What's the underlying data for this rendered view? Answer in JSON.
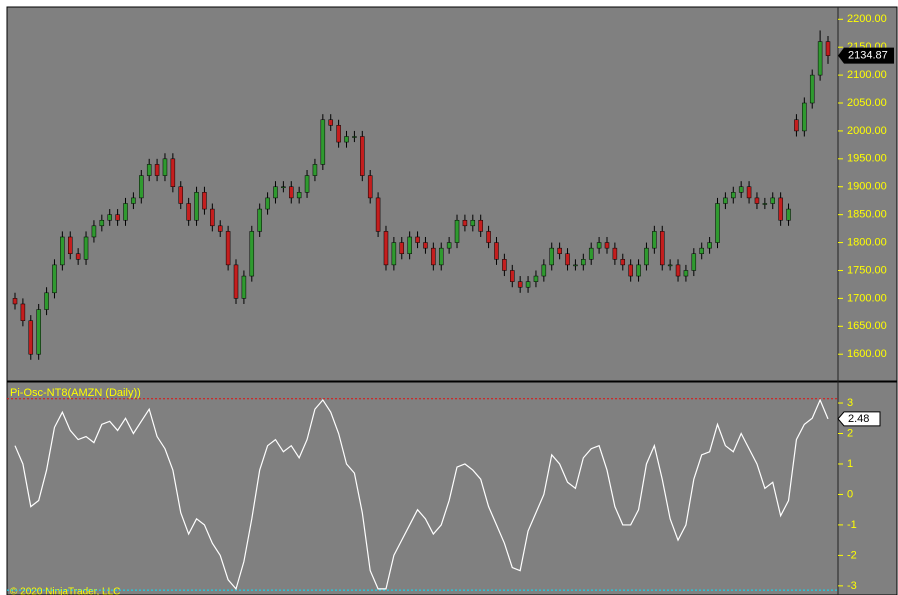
{
  "chart_data": [
    {
      "type": "candlestick",
      "up_color": "#2f9a2f",
      "down_color": "#c41e1e",
      "wick_color": "#000000",
      "ylim": [
        1552,
        2222
      ],
      "yticks": [
        {
          "value": 1600,
          "label": "1600.00"
        },
        {
          "value": 1650,
          "label": "1650.00"
        },
        {
          "value": 1700,
          "label": "1700.00"
        },
        {
          "value": 1750,
          "label": "1750.00"
        },
        {
          "value": 1800,
          "label": "1800.00"
        },
        {
          "value": 1850,
          "label": "1850.00"
        },
        {
          "value": 1900,
          "label": "1900.00"
        },
        {
          "value": 1950,
          "label": "1950.00"
        },
        {
          "value": 2000,
          "label": "2000.00"
        },
        {
          "value": 2050,
          "label": "2050.00"
        },
        {
          "value": 2100,
          "label": "2100.00"
        },
        {
          "value": 2150,
          "label": "2150.00"
        },
        {
          "value": 2200,
          "label": "2200.00"
        }
      ],
      "open": [
        1700,
        1690,
        1660,
        1600,
        1680,
        1710,
        1760,
        1810,
        1780,
        1770,
        1810,
        1830,
        1840,
        1850,
        1840,
        1870,
        1880,
        1920,
        1940,
        1920,
        1950,
        1900,
        1870,
        1840,
        1890,
        1860,
        1830,
        1820,
        1760,
        1700,
        1740,
        1820,
        1860,
        1880,
        1900,
        1900,
        1880,
        1890,
        1920,
        1940,
        2020,
        2010,
        1980,
        1990,
        1990,
        1920,
        1880,
        1820,
        1760,
        1800,
        1780,
        1810,
        1800,
        1790,
        1760,
        1790,
        1800,
        1840,
        1830,
        1840,
        1820,
        1800,
        1770,
        1750,
        1730,
        1720,
        1730,
        1740,
        1760,
        1790,
        1780,
        1760,
        1760,
        1770,
        1790,
        1800,
        1790,
        1770,
        1760,
        1740,
        1760,
        1790,
        1820,
        1760,
        1760,
        1740,
        1750,
        1780,
        1790,
        1800,
        1870,
        1880,
        1890,
        1900,
        1880,
        1870,
        1870,
        1880,
        1840,
        2020,
        2000,
        2050,
        2100,
        2160
      ],
      "high": [
        1710,
        1700,
        1670,
        1690,
        1720,
        1770,
        1820,
        1820,
        1790,
        1820,
        1840,
        1850,
        1860,
        1860,
        1880,
        1890,
        1930,
        1950,
        1950,
        1960,
        1960,
        1910,
        1880,
        1900,
        1900,
        1870,
        1840,
        1830,
        1770,
        1750,
        1830,
        1870,
        1890,
        1910,
        1910,
        1910,
        1900,
        1930,
        1950,
        2030,
        2030,
        2020,
        2000,
        2000,
        2000,
        1930,
        1890,
        1830,
        1810,
        1810,
        1820,
        1820,
        1810,
        1800,
        1800,
        1810,
        1850,
        1850,
        1850,
        1850,
        1830,
        1810,
        1780,
        1760,
        1740,
        1740,
        1750,
        1770,
        1800,
        1800,
        1790,
        1770,
        1780,
        1800,
        1810,
        1810,
        1800,
        1780,
        1770,
        1770,
        1800,
        1830,
        1830,
        1770,
        1770,
        1760,
        1790,
        1800,
        1810,
        1880,
        1890,
        1900,
        1910,
        1910,
        1890,
        1880,
        1890,
        1890,
        1870,
        2030,
        2060,
        2110,
        2180,
        2170
      ],
      "low": [
        1680,
        1650,
        1590,
        1590,
        1670,
        1700,
        1750,
        1770,
        1760,
        1760,
        1800,
        1820,
        1830,
        1830,
        1830,
        1860,
        1870,
        1910,
        1910,
        1910,
        1890,
        1860,
        1830,
        1830,
        1850,
        1820,
        1810,
        1750,
        1690,
        1690,
        1730,
        1810,
        1850,
        1870,
        1890,
        1870,
        1870,
        1880,
        1910,
        1930,
        2000,
        1970,
        1970,
        1980,
        1910,
        1870,
        1810,
        1750,
        1750,
        1770,
        1770,
        1790,
        1780,
        1750,
        1750,
        1780,
        1790,
        1820,
        1820,
        1810,
        1790,
        1760,
        1740,
        1720,
        1710,
        1710,
        1720,
        1730,
        1750,
        1770,
        1750,
        1750,
        1750,
        1760,
        1780,
        1780,
        1760,
        1750,
        1730,
        1730,
        1750,
        1780,
        1750,
        1750,
        1730,
        1730,
        1740,
        1770,
        1780,
        1790,
        1860,
        1870,
        1880,
        1870,
        1860,
        1860,
        1860,
        1830,
        1830,
        1990,
        1990,
        2040,
        2090,
        2120
      ],
      "close": [
        1690,
        1660,
        1600,
        1680,
        1710,
        1760,
        1810,
        1780,
        1770,
        1810,
        1830,
        1840,
        1850,
        1840,
        1870,
        1880,
        1920,
        1940,
        1920,
        1950,
        1900,
        1870,
        1840,
        1890,
        1860,
        1830,
        1820,
        1760,
        1700,
        1740,
        1820,
        1860,
        1880,
        1900,
        1900,
        1880,
        1890,
        1920,
        1940,
        2020,
        2010,
        1980,
        1990,
        1990,
        1920,
        1880,
        1820,
        1760,
        1800,
        1780,
        1810,
        1800,
        1790,
        1760,
        1790,
        1800,
        1840,
        1830,
        1840,
        1820,
        1800,
        1770,
        1750,
        1730,
        1720,
        1730,
        1740,
        1760,
        1790,
        1780,
        1760,
        1760,
        1770,
        1790,
        1800,
        1790,
        1770,
        1760,
        1740,
        1760,
        1790,
        1820,
        1760,
        1760,
        1740,
        1750,
        1780,
        1790,
        1800,
        1870,
        1880,
        1890,
        1900,
        1880,
        1870,
        1870,
        1880,
        1840,
        1860,
        2000,
        2050,
        2100,
        2160,
        2134.87
      ]
    },
    {
      "type": "line",
      "title": "Pi-Osc-NT8(AMZN (Daily))",
      "color": "#ffffff",
      "ylim": [
        -3.3,
        3.69
      ],
      "yticks": [
        -3,
        -2,
        -1,
        0,
        1,
        2,
        3
      ],
      "levels": [
        {
          "value": 3.14,
          "color": "#e01010"
        },
        {
          "value": -3.14,
          "color": "#00e5ff"
        }
      ],
      "values": [
        1.6,
        1.0,
        -0.4,
        -0.2,
        0.8,
        2.2,
        2.7,
        2.1,
        1.8,
        1.9,
        1.7,
        2.3,
        2.4,
        2.1,
        2.5,
        2.0,
        2.4,
        2.8,
        1.9,
        1.5,
        0.8,
        -0.6,
        -1.3,
        -0.8,
        -1.0,
        -1.6,
        -2.0,
        -2.8,
        -3.1,
        -2.2,
        -0.8,
        0.8,
        1.6,
        1.8,
        1.4,
        1.6,
        1.2,
        1.8,
        2.8,
        3.1,
        2.7,
        2.0,
        1.0,
        0.7,
        -0.6,
        -2.5,
        -3.1,
        -3.1,
        -2.0,
        -1.5,
        -1.0,
        -0.5,
        -0.8,
        -1.3,
        -1.0,
        -0.2,
        0.9,
        1.0,
        0.8,
        0.5,
        -0.4,
        -1.0,
        -1.6,
        -2.4,
        -2.5,
        -1.2,
        -0.6,
        0.0,
        1.3,
        1.0,
        0.4,
        0.2,
        1.2,
        1.5,
        1.6,
        0.8,
        -0.4,
        -1.0,
        -1.0,
        -0.5,
        1.0,
        1.6,
        0.5,
        -0.8,
        -1.5,
        -1.0,
        0.5,
        1.3,
        1.4,
        2.3,
        1.6,
        1.4,
        2.0,
        1.5,
        1.0,
        0.2,
        0.4,
        -0.7,
        -0.2,
        1.8,
        2.3,
        2.5,
        3.1,
        2.48
      ]
    }
  ],
  "footer": "© 2020 NinjaTrader, LLC"
}
